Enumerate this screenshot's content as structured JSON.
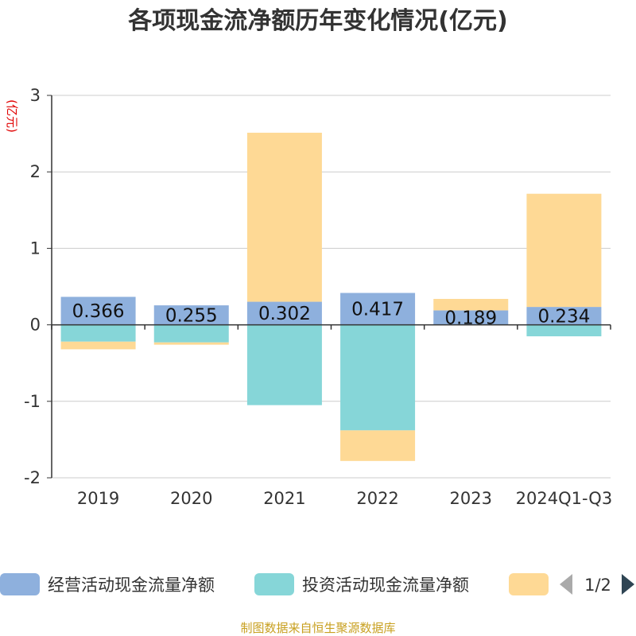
{
  "chart_data": {
    "type": "bar",
    "stacked": true,
    "title": "各项现金流净额历年变化情况(亿元)",
    "ylabel": "(亿元)",
    "ylim": [
      -2,
      3
    ],
    "yticks": [
      3,
      2,
      1,
      0,
      -1,
      -2
    ],
    "categories": [
      "2019",
      "2020",
      "2021",
      "2022",
      "2023",
      "2024Q1-Q3"
    ],
    "series": [
      {
        "name": "经营活动现金流量净额",
        "color": "#8eb0dd",
        "values": [
          0.366,
          0.255,
          0.302,
          0.417,
          0.189,
          0.234
        ]
      },
      {
        "name": "投资活动现金流量净额",
        "color": "#86d6d8",
        "values": [
          -0.22,
          -0.23,
          -1.05,
          -1.38,
          0.0,
          -0.15
        ]
      },
      {
        "name": "",
        "color": "#fed995",
        "values": [
          -0.1,
          -0.03,
          2.21,
          -0.4,
          0.15,
          1.48
        ]
      }
    ],
    "data_labels": [
      "0.366",
      "0.255",
      "0.302",
      "0.417",
      "0.189",
      "0.234"
    ],
    "legend_position": "bottom",
    "pager": "1/2",
    "source": "制图数据来自恒生聚源数据库"
  }
}
